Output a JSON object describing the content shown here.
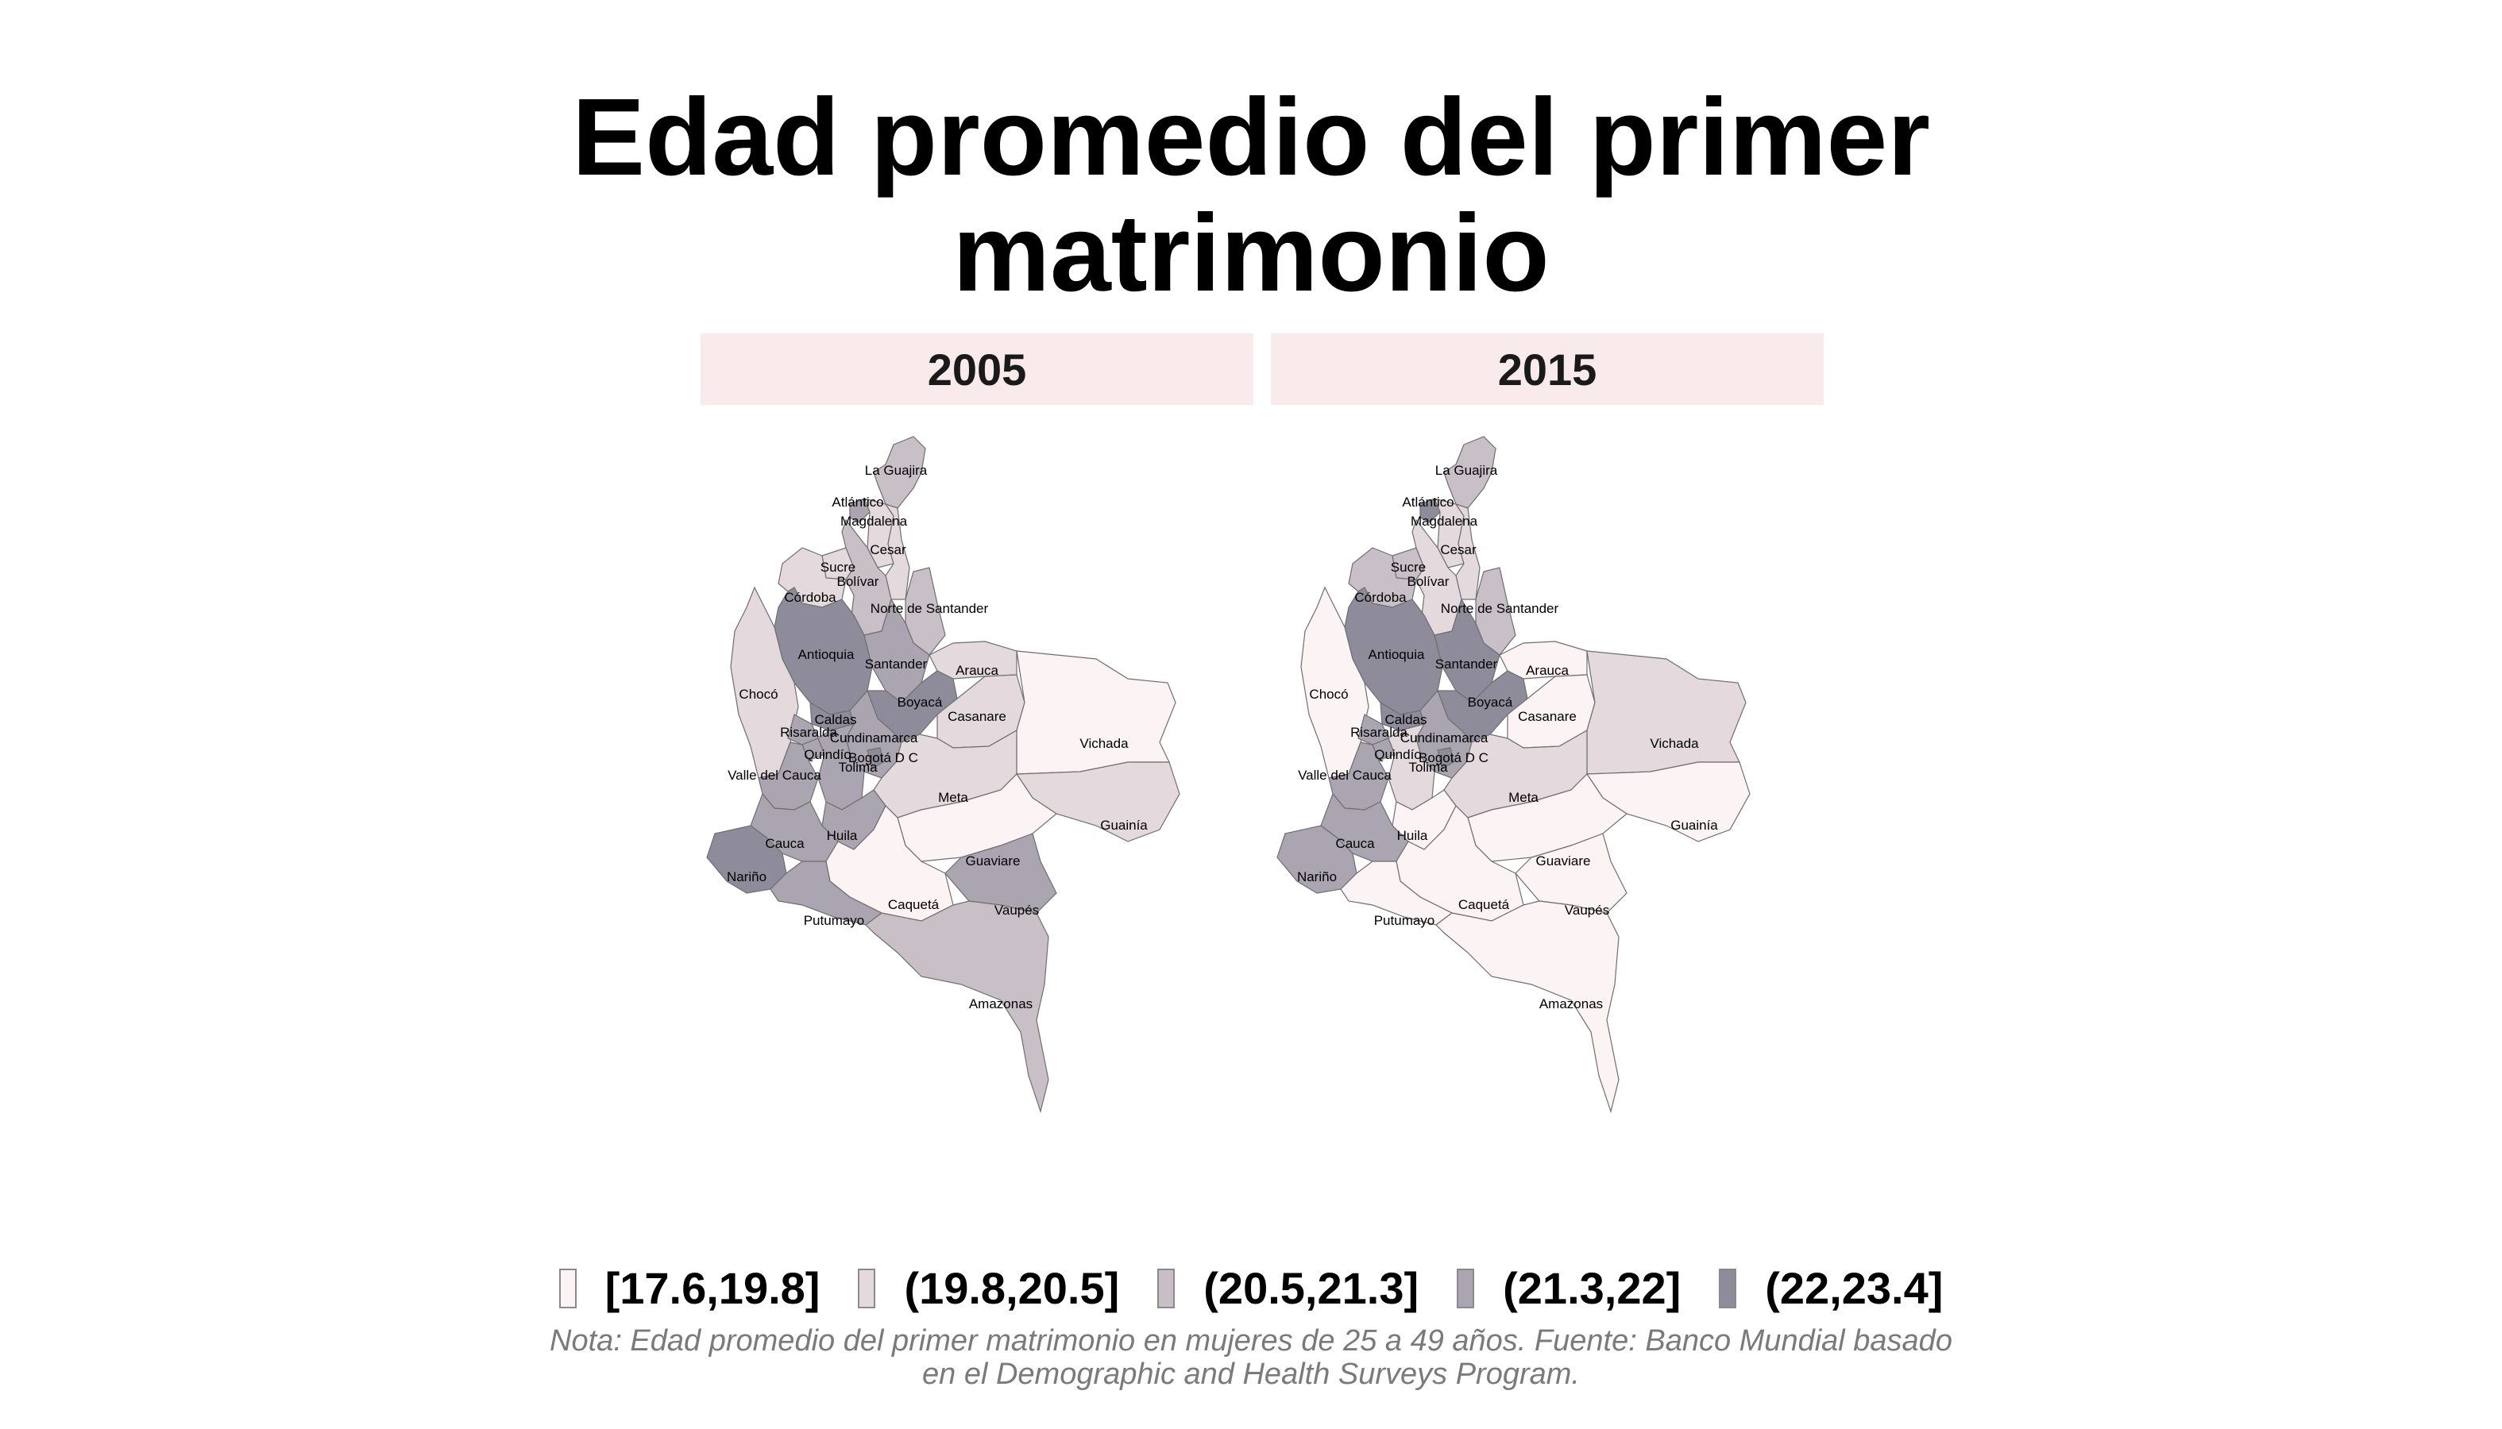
{
  "title_lines": [
    "Edad promedio del primer",
    "matrimonio"
  ],
  "panels": [
    {
      "year": "2005"
    },
    {
      "year": "2015"
    }
  ],
  "legend": [
    {
      "label": "[17.6,19.8]",
      "color": "#fbf3f4"
    },
    {
      "label": "(19.8,20.5]",
      "color": "#e4d9dd"
    },
    {
      "label": "(20.5,21.3]",
      "color": "#c8bfc7"
    },
    {
      "label": "(21.3,22]",
      "color": "#aaa5b1"
    },
    {
      "label": "(22,23.4]",
      "color": "#8e8c9b"
    }
  ],
  "note_lines": [
    "Nota: Edad promedio del primer matrimonio en mujeres de 25 a 49 años. Fuente: Banco Mundial basado",
    "en el Demographic and Health Surveys Program."
  ],
  "departments": [
    {
      "name": "La Guajira",
      "c2005": 2,
      "c2015": 2
    },
    {
      "name": "Atlántico",
      "c2005": 3,
      "c2015": 4
    },
    {
      "name": "Magdalena",
      "c2005": 1,
      "c2015": 1
    },
    {
      "name": "Cesar",
      "c2005": 1,
      "c2015": 1
    },
    {
      "name": "Sucre",
      "c2005": 1,
      "c2015": 2
    },
    {
      "name": "Bolívar",
      "c2005": 2,
      "c2015": 1
    },
    {
      "name": "Córdoba",
      "c2005": 1,
      "c2015": 2
    },
    {
      "name": "Norte de Santander",
      "c2005": 2,
      "c2015": 2
    },
    {
      "name": "Antioquia",
      "c2005": 4,
      "c2015": 4
    },
    {
      "name": "Santander",
      "c2005": 3,
      "c2015": 4
    },
    {
      "name": "Arauca",
      "c2005": 1,
      "c2015": 0
    },
    {
      "name": "Chocó",
      "c2005": 1,
      "c2015": 0
    },
    {
      "name": "Caldas",
      "c2005": 4,
      "c2015": 4
    },
    {
      "name": "Risaralda",
      "c2005": 3,
      "c2015": 3
    },
    {
      "name": "Boyacá",
      "c2005": 4,
      "c2015": 4
    },
    {
      "name": "Casanare",
      "c2005": 1,
      "c2015": 0
    },
    {
      "name": "Cundinamarca",
      "c2005": 3,
      "c2015": 3
    },
    {
      "name": "Quindío",
      "c2005": 3,
      "c2015": 3
    },
    {
      "name": "Bogotá D C",
      "c2005": 4,
      "c2015": 4
    },
    {
      "name": "Vichada",
      "c2005": 0,
      "c2015": 1
    },
    {
      "name": "Tolima",
      "c2005": 3,
      "c2015": 1
    },
    {
      "name": "Valle del Cauca",
      "c2005": 3,
      "c2015": 3
    },
    {
      "name": "Meta",
      "c2005": 1,
      "c2015": 1
    },
    {
      "name": "Huila",
      "c2005": 3,
      "c2015": 0
    },
    {
      "name": "Guainía",
      "c2005": 1,
      "c2015": 0
    },
    {
      "name": "Cauca",
      "c2005": 3,
      "c2015": 3
    },
    {
      "name": "Guaviare",
      "c2005": 0,
      "c2015": 0
    },
    {
      "name": "Nariño",
      "c2005": 4,
      "c2015": 3
    },
    {
      "name": "Caquetá",
      "c2005": 0,
      "c2015": 0
    },
    {
      "name": "Vaupés",
      "c2005": 3,
      "c2015": 0
    },
    {
      "name": "Putumayo",
      "c2005": 3,
      "c2015": 0
    },
    {
      "name": "Amazonas",
      "c2005": 2,
      "c2015": 0
    }
  ]
}
